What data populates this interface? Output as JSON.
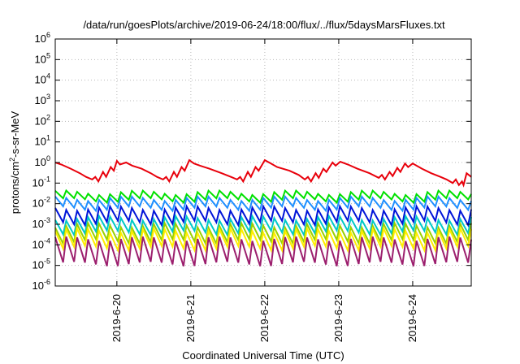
{
  "chart_data": {
    "type": "line",
    "title": "/data/run/goesPlots/archive/2019-06-24/18:00/flux/../flux/5daysMarsFluxes.txt",
    "xlabel": "Coordinated Universal Time (UTC)",
    "ylabel": "protons/cm²-s-sr-MeV",
    "ylabel_base": "protons/cm",
    "ylabel_sup": "2",
    "ylabel_rest": "-s-sr-MeV",
    "yscale": "log",
    "ylim": [
      1e-06,
      1000000.0
    ],
    "xlim": [
      "2019-06-19T04:00",
      "2019-06-24T19:00"
    ],
    "grid": true,
    "y_ticks": [
      {
        "value": 1e-06,
        "base": "10",
        "exp": "-6"
      },
      {
        "value": 1e-05,
        "base": "10",
        "exp": "-5"
      },
      {
        "value": 0.0001,
        "base": "10",
        "exp": "-4"
      },
      {
        "value": 0.001,
        "base": "10",
        "exp": "-3"
      },
      {
        "value": 0.01,
        "base": "10",
        "exp": "-2"
      },
      {
        "value": 0.1,
        "base": "10",
        "exp": "-1"
      },
      {
        "value": 1,
        "base": "10",
        "exp": "0"
      },
      {
        "value": 10,
        "base": "10",
        "exp": "1"
      },
      {
        "value": 100,
        "base": "10",
        "exp": "2"
      },
      {
        "value": 1000,
        "base": "10",
        "exp": "3"
      },
      {
        "value": 10000,
        "base": "10",
        "exp": "4"
      },
      {
        "value": 100000,
        "base": "10",
        "exp": "5"
      },
      {
        "value": 1000000,
        "base": "10",
        "exp": "6"
      }
    ],
    "x_ticks": [
      {
        "value": "2019-06-20T00:00",
        "label": "2019-6-20"
      },
      {
        "value": "2019-06-21T00:00",
        "label": "2019-6-21"
      },
      {
        "value": "2019-06-22T00:00",
        "label": "2019-6-22"
      },
      {
        "value": "2019-06-23T00:00",
        "label": "2019-6-23"
      },
      {
        "value": "2019-06-24T00:00",
        "label": "2019-6-24"
      }
    ],
    "series": [
      {
        "color": "#e8000b",
        "points": [
          [
            "2019-06-19T04:00",
            1.0
          ],
          [
            "2019-06-19T06:00",
            0.8
          ],
          [
            "2019-06-19T09:00",
            0.5
          ],
          [
            "2019-06-19T12:00",
            0.3
          ],
          [
            "2019-06-19T14:00",
            0.2
          ],
          [
            "2019-06-19T16:00",
            0.15
          ],
          [
            "2019-06-19T17:00",
            0.2
          ],
          [
            "2019-06-19T18:00",
            0.12
          ],
          [
            "2019-06-19T19:30",
            0.35
          ],
          [
            "2019-06-19T20:30",
            0.2
          ],
          [
            "2019-06-19T22:00",
            0.6
          ],
          [
            "2019-06-19T23:00",
            0.4
          ],
          [
            "2019-06-20T00:00",
            1.2
          ],
          [
            "2019-06-20T01:00",
            0.8
          ],
          [
            "2019-06-20T03:00",
            1.0
          ],
          [
            "2019-06-20T05:00",
            0.7
          ],
          [
            "2019-06-20T08:00",
            0.5
          ],
          [
            "2019-06-20T11:00",
            0.3
          ],
          [
            "2019-06-20T13:00",
            0.2
          ],
          [
            "2019-06-20T15:00",
            0.15
          ],
          [
            "2019-06-20T16:00",
            0.2
          ],
          [
            "2019-06-20T17:00",
            0.12
          ],
          [
            "2019-06-20T18:30",
            0.35
          ],
          [
            "2019-06-20T19:30",
            0.2
          ],
          [
            "2019-06-20T21:00",
            0.6
          ],
          [
            "2019-06-20T22:00",
            0.4
          ],
          [
            "2019-06-20T23:30",
            1.3
          ],
          [
            "2019-06-21T01:00",
            0.9
          ],
          [
            "2019-06-21T03:00",
            0.7
          ],
          [
            "2019-06-21T06:00",
            0.5
          ],
          [
            "2019-06-21T10:00",
            0.3
          ],
          [
            "2019-06-21T13:00",
            0.2
          ],
          [
            "2019-06-21T15:00",
            0.15
          ],
          [
            "2019-06-21T16:00",
            0.2
          ],
          [
            "2019-06-21T17:00",
            0.12
          ],
          [
            "2019-06-21T18:30",
            0.35
          ],
          [
            "2019-06-21T19:30",
            0.2
          ],
          [
            "2019-06-21T21:00",
            0.6
          ],
          [
            "2019-06-21T22:00",
            0.4
          ],
          [
            "2019-06-22T00:00",
            1.3
          ],
          [
            "2019-06-22T02:00",
            0.9
          ],
          [
            "2019-06-22T04:00",
            0.6
          ],
          [
            "2019-06-22T08:00",
            0.4
          ],
          [
            "2019-06-22T11:00",
            0.25
          ],
          [
            "2019-06-22T13:00",
            0.15
          ],
          [
            "2019-06-22T14:00",
            0.2
          ],
          [
            "2019-06-22T15:00",
            0.12
          ],
          [
            "2019-06-22T16:30",
            0.3
          ],
          [
            "2019-06-22T17:30",
            0.18
          ],
          [
            "2019-06-22T19:00",
            0.5
          ],
          [
            "2019-06-22T20:00",
            0.35
          ],
          [
            "2019-06-22T22:00",
            1.0
          ],
          [
            "2019-06-22T23:00",
            0.7
          ],
          [
            "2019-06-23T00:30",
            1.1
          ],
          [
            "2019-06-23T03:00",
            0.8
          ],
          [
            "2019-06-23T06:00",
            0.5
          ],
          [
            "2019-06-23T10:00",
            0.3
          ],
          [
            "2019-06-23T13:00",
            0.18
          ],
          [
            "2019-06-23T14:00",
            0.25
          ],
          [
            "2019-06-23T15:00",
            0.15
          ],
          [
            "2019-06-23T16:30",
            0.35
          ],
          [
            "2019-06-23T17:30",
            0.22
          ],
          [
            "2019-06-23T19:00",
            0.55
          ],
          [
            "2019-06-23T20:00",
            0.35
          ],
          [
            "2019-06-23T21:30",
            0.9
          ],
          [
            "2019-06-23T22:30",
            0.6
          ],
          [
            "2019-06-24T00:00",
            0.9
          ],
          [
            "2019-06-24T03:00",
            0.5
          ],
          [
            "2019-06-24T06:00",
            0.3
          ],
          [
            "2019-06-24T09:00",
            0.2
          ],
          [
            "2019-06-24T11:00",
            0.15
          ],
          [
            "2019-06-24T13:00",
            0.1
          ],
          [
            "2019-06-24T14:00",
            0.15
          ],
          [
            "2019-06-24T15:00",
            0.08
          ],
          [
            "2019-06-24T16:00",
            0.12
          ],
          [
            "2019-06-24T16:30",
            0.08
          ],
          [
            "2019-06-24T17:30",
            0.3
          ],
          [
            "2019-06-24T19:00",
            0.2
          ]
        ]
      },
      {
        "color": "#00e000",
        "cycles": 38,
        "high": 0.035,
        "low": 0.015
      },
      {
        "color": "#1f8fff",
        "cycles": 38,
        "high": 0.018,
        "low": 0.006
      },
      {
        "color": "#0014d8",
        "cycles": 38,
        "high": 0.006,
        "low": 0.0012
      },
      {
        "color": "#00c8c8",
        "cycles": 38,
        "high": 0.002,
        "low": 0.0004
      },
      {
        "color": "#9ad000",
        "cycles": 38,
        "high": 0.0009,
        "low": 0.00015
      },
      {
        "color": "#ffee00",
        "cycles": 38,
        "high": 0.0005,
        "low": 7e-05
      },
      {
        "color": "#9c1f6e",
        "cycles": 38,
        "high": 0.0002,
        "low": 1.2e-05
      }
    ]
  }
}
